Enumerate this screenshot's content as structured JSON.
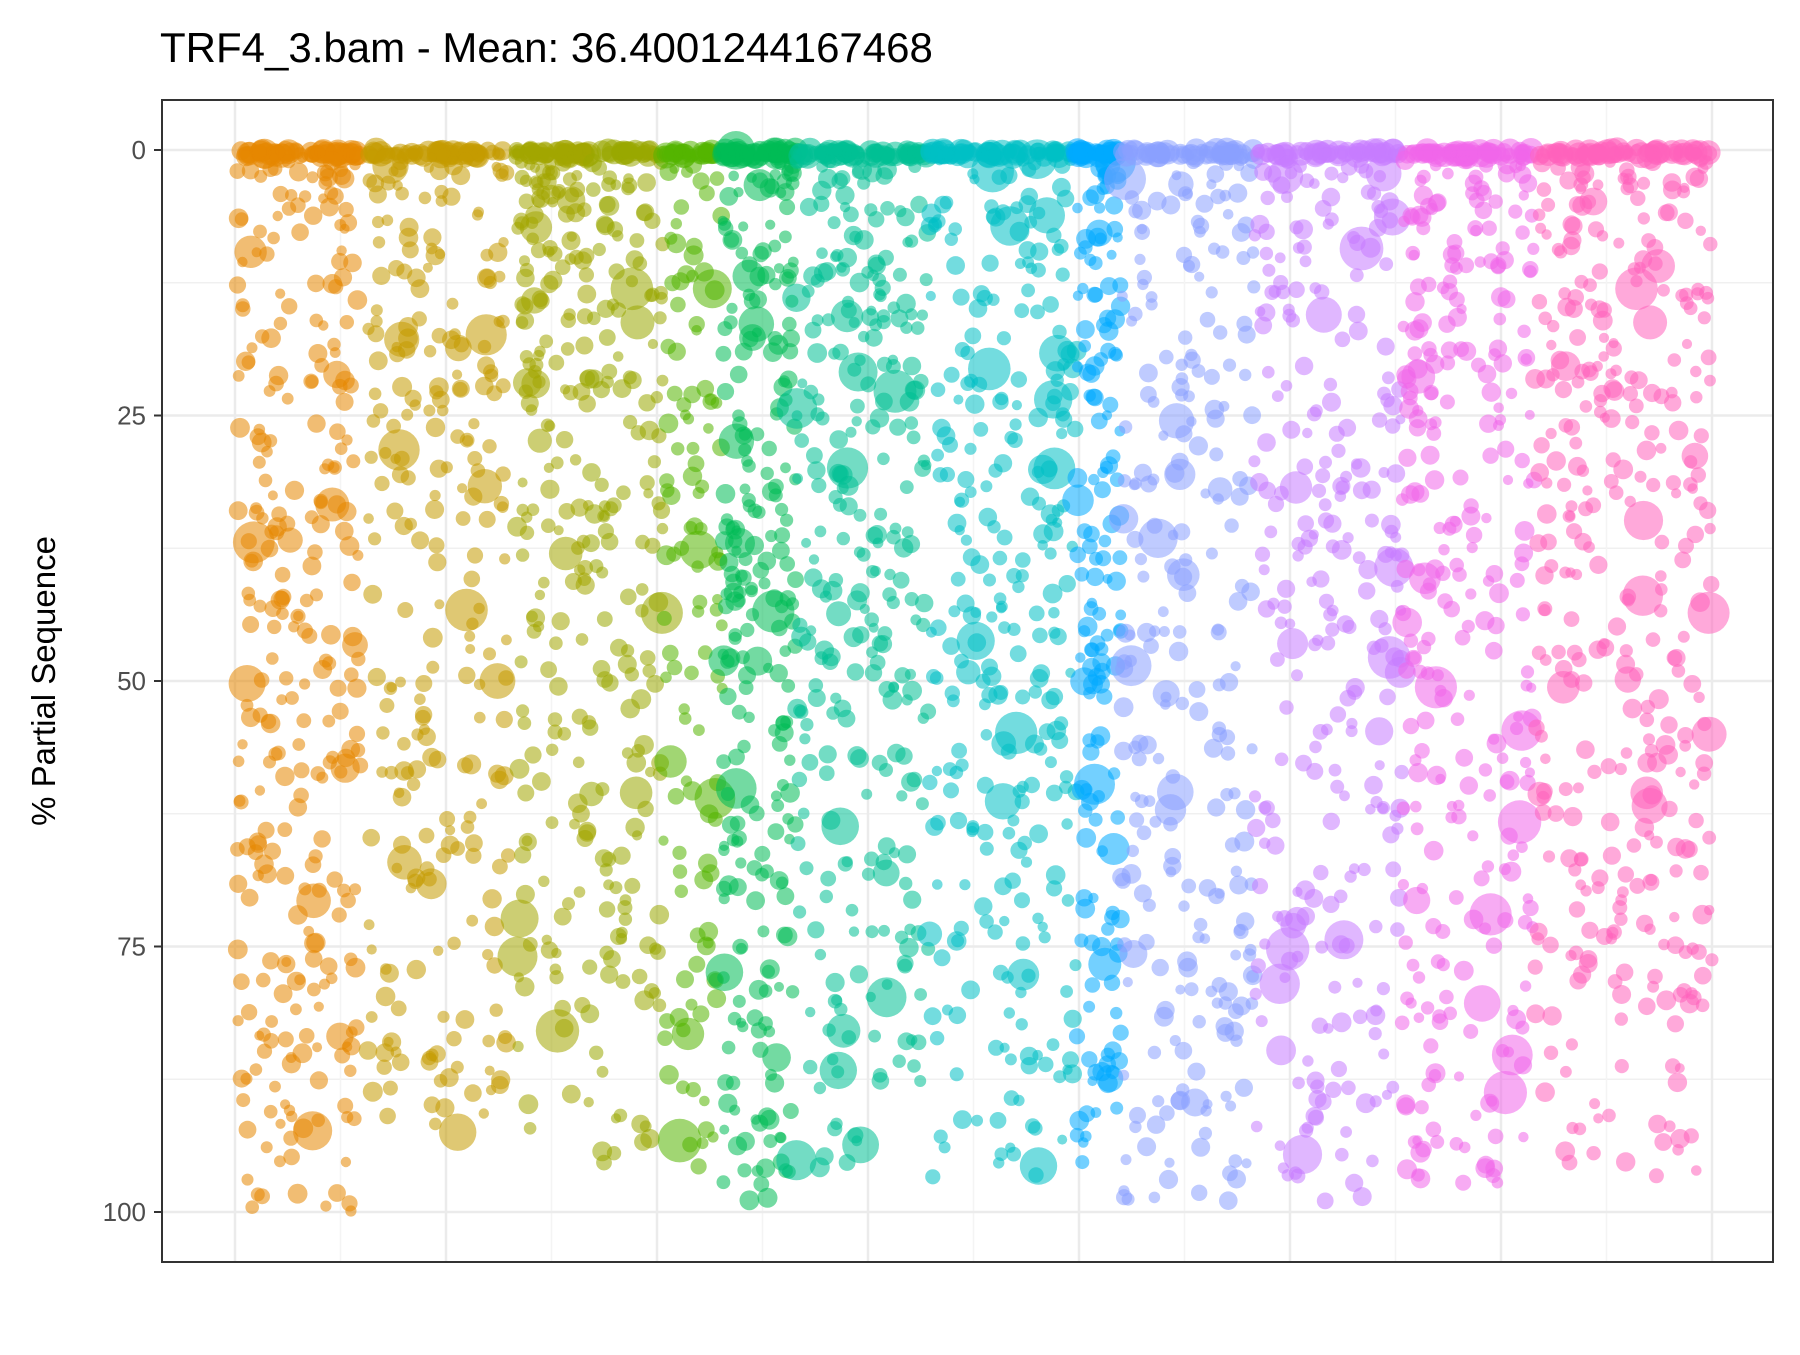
{
  "chart_data": {
    "type": "scatter",
    "title": "TRF4_3.bam - Mean: 36.4001244167468",
    "xlabel": "",
    "ylabel": "% Partial Sequence",
    "y_axis_reversed": true,
    "ylim": [
      0,
      100
    ],
    "yticks": [
      0,
      25,
      50,
      75,
      100
    ],
    "xlim": [
      0,
      1
    ],
    "xticks_shown": false,
    "grid": true,
    "legend": "none",
    "point_alpha": 0.55,
    "color_palette": "hue ramp across x (orange → olive → green → teal → blue → violet → pink)",
    "groups": [
      {
        "x_start": 0.0,
        "x_end": 0.085,
        "color": "#E58700",
        "n": 300,
        "y_max": 100
      },
      {
        "x_start": 0.09,
        "x_end": 0.185,
        "color": "#C49A00",
        "n": 260,
        "y_max": 93
      },
      {
        "x_start": 0.19,
        "x_end": 0.24,
        "color": "#A3A500",
        "n": 200,
        "y_max": 93,
        "dense_top": true
      },
      {
        "x_start": 0.24,
        "x_end": 0.29,
        "color": "#99A800",
        "n": 150,
        "y_max": 98
      },
      {
        "x_start": 0.29,
        "x_end": 0.33,
        "color": "#53B400",
        "n": 120,
        "y_max": 96
      },
      {
        "x_start": 0.33,
        "x_end": 0.38,
        "color": "#00BC56",
        "n": 260,
        "y_max": 100
      },
      {
        "x_start": 0.38,
        "x_end": 0.47,
        "color": "#00C094",
        "n": 300,
        "y_max": 96
      },
      {
        "x_start": 0.47,
        "x_end": 0.57,
        "color": "#00BFC4",
        "n": 300,
        "y_max": 97
      },
      {
        "x_start": 0.57,
        "x_end": 0.6,
        "color": "#00A9FF",
        "n": 160,
        "y_max": 96
      },
      {
        "x_start": 0.6,
        "x_end": 0.69,
        "color": "#8AA0FF",
        "n": 260,
        "y_max": 99
      },
      {
        "x_start": 0.69,
        "x_end": 0.79,
        "color": "#C77CFF",
        "n": 280,
        "y_max": 99
      },
      {
        "x_start": 0.79,
        "x_end": 0.88,
        "color": "#F066E9",
        "n": 300,
        "y_max": 98
      },
      {
        "x_start": 0.88,
        "x_end": 1.0,
        "color": "#FF62BC",
        "n": 360,
        "y_max": 98
      }
    ]
  }
}
